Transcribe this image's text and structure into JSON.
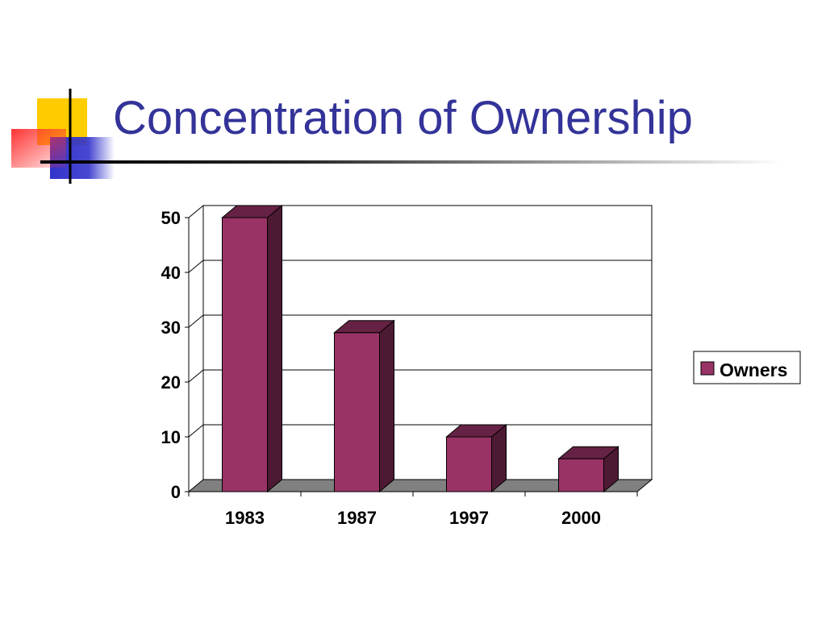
{
  "slide": {
    "title": "Concentration of Ownership",
    "title_color": "#333399"
  },
  "decoration": {
    "yellow": "#FFCC00",
    "blue": "#3333CC",
    "red": "#FF3333",
    "line": "#000000"
  },
  "chart_data": {
    "type": "bar",
    "categories": [
      "1983",
      "1987",
      "1997",
      "2000"
    ],
    "series": [
      {
        "name": "Owners",
        "values": [
          50,
          29,
          10,
          6
        ],
        "color": "#993366"
      }
    ],
    "ylim": [
      0,
      50
    ],
    "yticks": [
      0,
      10,
      20,
      30,
      40,
      50
    ],
    "grid": true,
    "legend": "right",
    "three_d": true,
    "floor_color": "#808080",
    "title": "",
    "xlabel": "",
    "ylabel": ""
  }
}
